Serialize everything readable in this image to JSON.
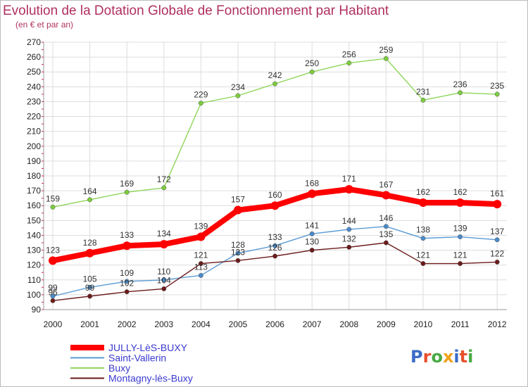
{
  "chart_data": {
    "type": "line",
    "title": "Evolution de la Dotation Globale de Fonctionnement par Habitant",
    "subtitle": "(en € et par an)",
    "xlabel": "",
    "ylabel": "",
    "categories": [
      "2000",
      "2001",
      "2002",
      "2003",
      "2004",
      "2005",
      "2006",
      "2007",
      "2008",
      "2009",
      "2010",
      "2011",
      "2012"
    ],
    "ylim": [
      90,
      270
    ],
    "yticks": [
      90,
      100,
      110,
      120,
      130,
      140,
      150,
      160,
      170,
      180,
      190,
      200,
      210,
      220,
      230,
      240,
      250,
      260,
      270
    ],
    "grid": true,
    "legend": "bottom-left",
    "series": [
      {
        "name": "JULLY-LèS-BUXY",
        "color": "#ff0000",
        "values": [
          123,
          128,
          133,
          134,
          139,
          157,
          160,
          168,
          171,
          167,
          162,
          162,
          161
        ]
      },
      {
        "name": "Saint-Vallerin",
        "color": "#5a9bd5",
        "values": [
          99,
          105,
          109,
          110,
          113,
          128,
          133,
          141,
          144,
          146,
          138,
          139,
          137
        ]
      },
      {
        "name": "Buxy",
        "color": "#8fd65a",
        "values": [
          159,
          164,
          169,
          172,
          229,
          234,
          242,
          250,
          256,
          259,
          231,
          236,
          235
        ]
      },
      {
        "name": "Montagny-lès-Buxy",
        "color": "#6b1a1a",
        "values": [
          96,
          99,
          102,
          104,
          121,
          123,
          126,
          130,
          132,
          135,
          121,
          121,
          122
        ]
      }
    ]
  },
  "logo": {
    "text": "Proxiti",
    "letter_colors": [
      "#3b6cc6",
      "#e8502d",
      "#49a942",
      "#f0a11a",
      "#3b6cc6",
      "#e8502d",
      "#49a942"
    ]
  }
}
